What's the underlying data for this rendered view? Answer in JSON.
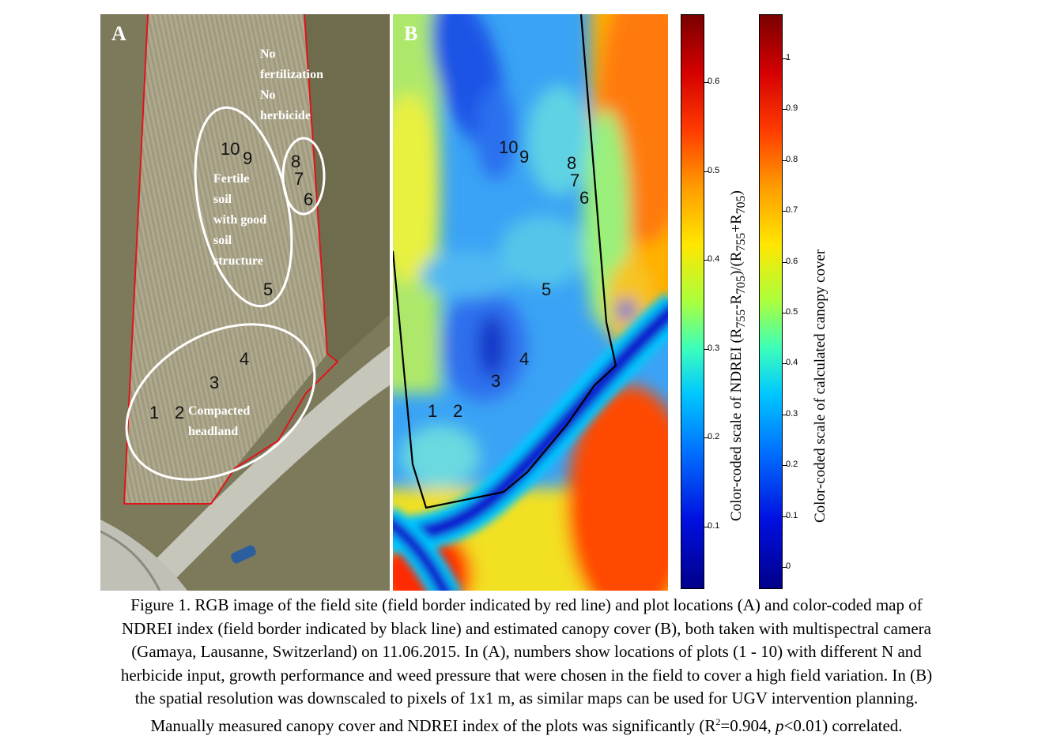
{
  "panel_a": {
    "letter": "A",
    "plots": [
      {
        "id": "plot-1",
        "label": "1"
      },
      {
        "id": "plot-2",
        "label": "2"
      },
      {
        "id": "plot-3",
        "label": "3"
      },
      {
        "id": "plot-4",
        "label": "4"
      },
      {
        "id": "plot-5",
        "label": "5"
      },
      {
        "id": "plot-6",
        "label": "6"
      },
      {
        "id": "plot-7",
        "label": "7"
      },
      {
        "id": "plot-8",
        "label": "8"
      },
      {
        "id": "plot-9",
        "label": "9"
      },
      {
        "id": "plot-10",
        "label": "10"
      }
    ],
    "annotations": {
      "no_fert_1": "No",
      "no_fert_2": "fertilization",
      "no_fert_3": "No",
      "no_fert_4": "herbicide",
      "fertile_1": "Fertile",
      "fertile_2": "soil",
      "fertile_3": "with good",
      "fertile_4": "soil",
      "fertile_5": "structure",
      "compacted_1": "Compacted",
      "compacted_2": "headland"
    }
  },
  "panel_b": {
    "letter": "B",
    "plots": [
      "1",
      "2",
      "3",
      "4",
      "5",
      "6",
      "7",
      "8",
      "9",
      "10"
    ]
  },
  "colorbars": {
    "ndrei": {
      "title_main": "Color-coded scale of NDREI (R",
      "sub1": "755",
      "t2": "-R",
      "sub2": "705",
      "t3": ")/(R",
      "sub3": "755",
      "t4": "+R",
      "sub4": "705",
      "t5": ")",
      "ticks": [
        "0.6",
        "0.5",
        "0.4",
        "0.3",
        "0.2",
        "0.1"
      ]
    },
    "canopy": {
      "title": "Color-coded scale of calculated canopy cover",
      "ticks": [
        "1",
        "0.9",
        "0.8",
        "0.7",
        "0.6",
        "0.5",
        "0.4",
        "0.3",
        "0.2",
        "0.1",
        "0"
      ]
    }
  },
  "caption": {
    "line1": "Figure 1. RGB image of the field site (field border indicated by red line) and plot locations (A) and color-coded map of",
    "line2": "NDREI index (field border indicated by black line) and estimated canopy cover (B), both taken with multispectral camera",
    "line3": "(Gamaya, Lausanne, Switzerland) on 11.06.2015. In (A), numbers show locations of plots (1 - 10) with different N and",
    "line4": "herbicide input, growth performance and weed pressure that were chosen in the field to cover a high field variation. In (B)",
    "line5": "the spatial resolution was downscaled to pixels of 1x1 m, as similar maps can be used for UGV intervention planning.",
    "line6a": "Manually measured canopy cover and NDREI index of the plots was significantly (R",
    "line6sup": "2",
    "line6b": "=0.904, ",
    "line6p": "p",
    "line6c": "<0.01) correlated."
  }
}
